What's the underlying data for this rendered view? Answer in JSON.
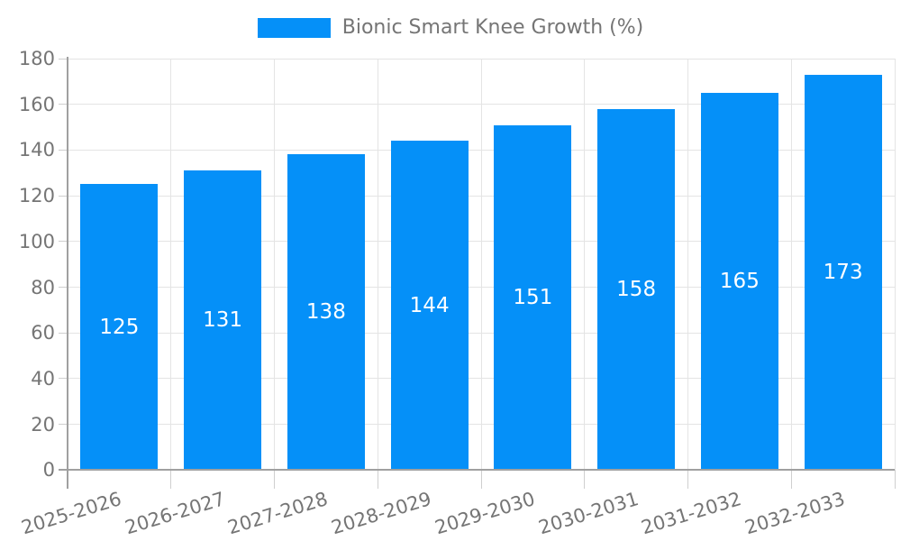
{
  "chart_data": {
    "type": "bar",
    "title": "Bionic Smart Knee Growth (%)",
    "legend_position": "top",
    "categories": [
      "2025-2026",
      "2026-2027",
      "2027-2028",
      "2028-2029",
      "2029-2030",
      "2030-2031",
      "2031-2032",
      "2032-2033"
    ],
    "values": [
      125,
      131,
      138,
      144,
      151,
      158,
      165,
      173
    ],
    "bar_labels": [
      "125",
      "131",
      "138",
      "144",
      "151",
      "158",
      "165",
      "173"
    ],
    "bar_labels_position": "center",
    "xlabel": "",
    "ylabel": "",
    "ylim": [
      0,
      180
    ],
    "yticks": [
      0,
      20,
      40,
      60,
      80,
      100,
      120,
      140,
      160,
      180
    ],
    "grid": true,
    "colors": {
      "bar": "#0590f8",
      "bar_label_text": "#ffffff",
      "tick_text": "#757575",
      "legend_text": "#757575",
      "gridline": "#e4e4e4",
      "tick_mark": "#cfcfcf",
      "axis_line": "#a0a0a0",
      "background": "#ffffff"
    }
  }
}
